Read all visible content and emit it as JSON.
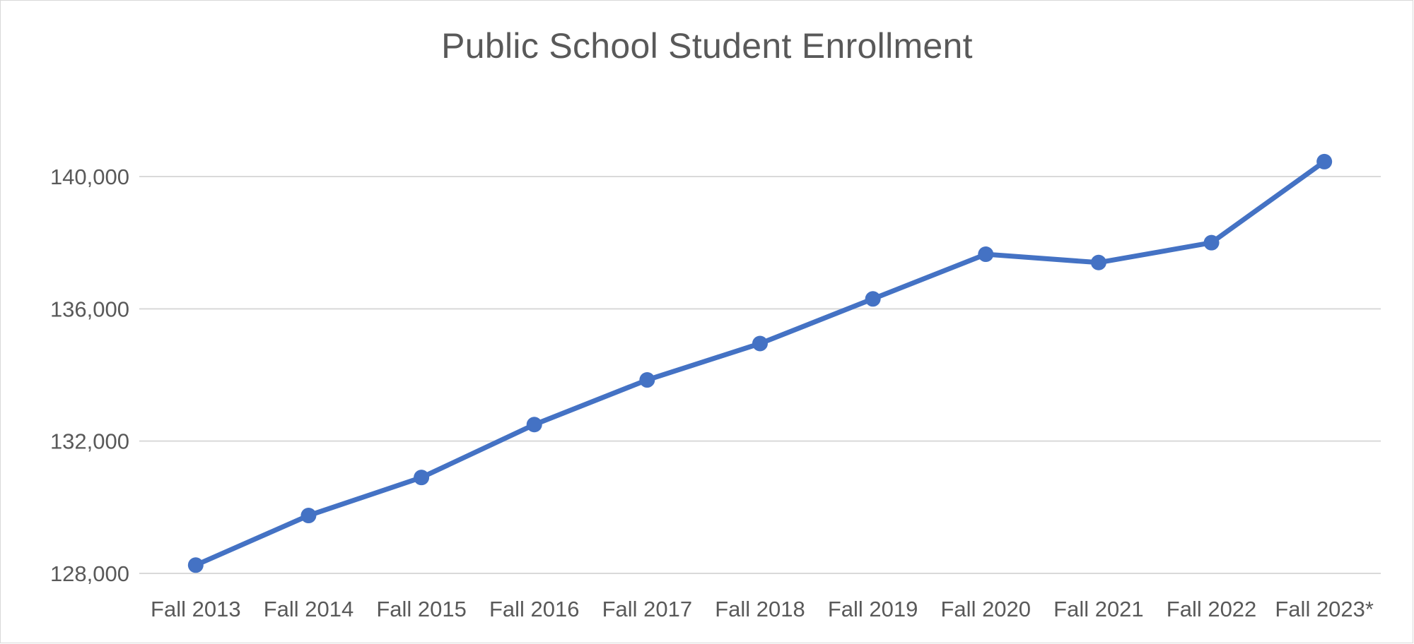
{
  "chart_data": {
    "type": "line",
    "title": "Public School Student Enrollment",
    "xlabel": "",
    "ylabel": "",
    "categories": [
      "Fall 2013",
      "Fall 2014",
      "Fall 2015",
      "Fall 2016",
      "Fall 2017",
      "Fall 2018",
      "Fall 2019",
      "Fall 2020",
      "Fall 2021",
      "Fall 2022",
      "Fall 2023*"
    ],
    "series": [
      {
        "name": "",
        "color": "#4472c4",
        "values": [
          128250,
          129750,
          130900,
          132500,
          133850,
          134950,
          136300,
          137650,
          137400,
          138000,
          140450
        ]
      }
    ],
    "yticks": [
      128000,
      132000,
      136000,
      140000
    ],
    "ytick_labels": [
      "128,000",
      "132,000",
      "136,000",
      "140,000"
    ],
    "ylim": [
      128000,
      140500
    ],
    "grid": true,
    "legend": "none",
    "colors": {
      "line": "#4472c4",
      "grid": "#d9d9d9",
      "text": "#595959"
    }
  }
}
